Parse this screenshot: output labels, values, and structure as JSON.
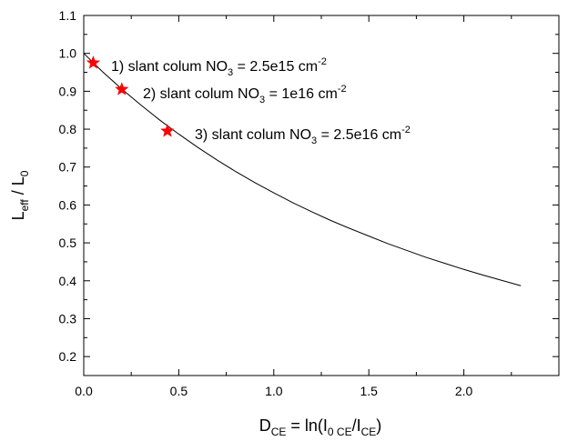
{
  "chart_data": {
    "type": "line",
    "title": "",
    "xlabel": {
      "main": "D",
      "main_sub": "CE",
      "eq": " = ln(I",
      "inner_sub": "0 CE",
      "mid": "/I",
      "mid_sub": "CE",
      "close": ")"
    },
    "ylabel": {
      "a": "L",
      "a_sub": "eff",
      "mid": " / L",
      "b_sub": "0"
    },
    "xlim": [
      0,
      2.5
    ],
    "ylim": [
      0.15,
      1.1
    ],
    "xticks": [
      0.0,
      0.5,
      1.0,
      1.5,
      2.0
    ],
    "xtick_labels": [
      "0.0",
      "0.5",
      "1.0",
      "1.5",
      "2.0"
    ],
    "yticks": [
      0.2,
      0.3,
      0.4,
      0.5,
      0.6,
      0.7,
      0.8,
      0.9,
      1.0,
      1.1
    ],
    "ytick_labels": [
      "0.2",
      "0.3",
      "0.4",
      "0.5",
      "0.6",
      "0.7",
      "0.8",
      "0.9",
      "1.0",
      "1.1"
    ],
    "grid": false,
    "line_color": "#000000",
    "marker_color": "#ff0000",
    "series": [
      {
        "x": [
          0.0,
          0.1,
          0.2,
          0.3,
          0.4,
          0.5,
          0.6,
          0.7,
          0.8,
          0.9,
          1.0,
          1.1,
          1.2,
          1.3,
          1.4,
          1.5,
          1.6,
          1.7,
          1.8,
          1.9,
          2.0,
          2.1,
          2.2,
          2.3
        ],
        "y": [
          1.0,
          0.951,
          0.906,
          0.864,
          0.824,
          0.787,
          0.752,
          0.719,
          0.688,
          0.659,
          0.632,
          0.606,
          0.582,
          0.559,
          0.538,
          0.518,
          0.498,
          0.48,
          0.462,
          0.446,
          0.43,
          0.415,
          0.401,
          0.387
        ]
      }
    ],
    "markers": [
      {
        "x": 0.05,
        "y": 0.975
      },
      {
        "x": 0.2,
        "y": 0.905
      },
      {
        "x": 0.44,
        "y": 0.795
      }
    ],
    "annotations": [
      {
        "pre": "1) slant colum NO",
        "sub": "3",
        "mid": " = 2.5e15 cm",
        "sup": "-2"
      },
      {
        "pre": "2) slant colum NO",
        "sub": "3",
        "mid": " = 1e16 cm",
        "sup": "-2"
      },
      {
        "pre": "3) slant colum NO",
        "sub": "3",
        "mid": " = 2.5e16 cm",
        "sup": "-2"
      }
    ]
  }
}
